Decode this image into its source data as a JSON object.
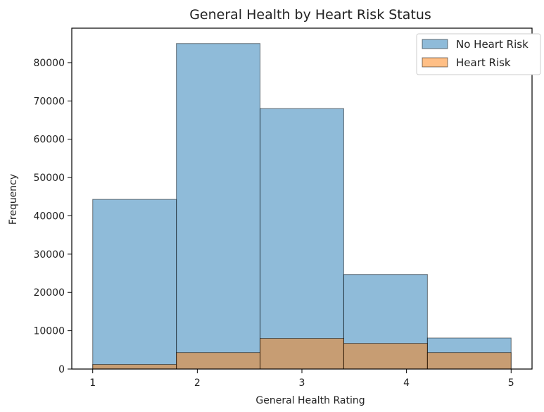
{
  "chart_data": {
    "type": "bar",
    "title": "General Health by Heart Risk Status",
    "xlabel": "General Health Rating",
    "ylabel": "Frequency",
    "xlim": [
      0.8,
      5.2
    ],
    "ylim": [
      0,
      89000
    ],
    "bin_edges": [
      1,
      1.8,
      2.6,
      3.4,
      4.2,
      5
    ],
    "xticks": [
      1,
      2,
      3,
      4,
      5
    ],
    "yticks": [
      0,
      10000,
      20000,
      30000,
      40000,
      50000,
      60000,
      70000,
      80000
    ],
    "series": [
      {
        "name": "No Heart Risk",
        "values": [
          44300,
          85000,
          68000,
          24700,
          8100
        ],
        "color": "#1f77b4",
        "opacity": 0.5
      },
      {
        "name": "Heart Risk",
        "values": [
          1200,
          4300,
          8000,
          6700,
          4300
        ],
        "color": "#ff7f0e",
        "opacity": 0.5
      }
    ],
    "legend_position": "top-right",
    "grid": false
  }
}
